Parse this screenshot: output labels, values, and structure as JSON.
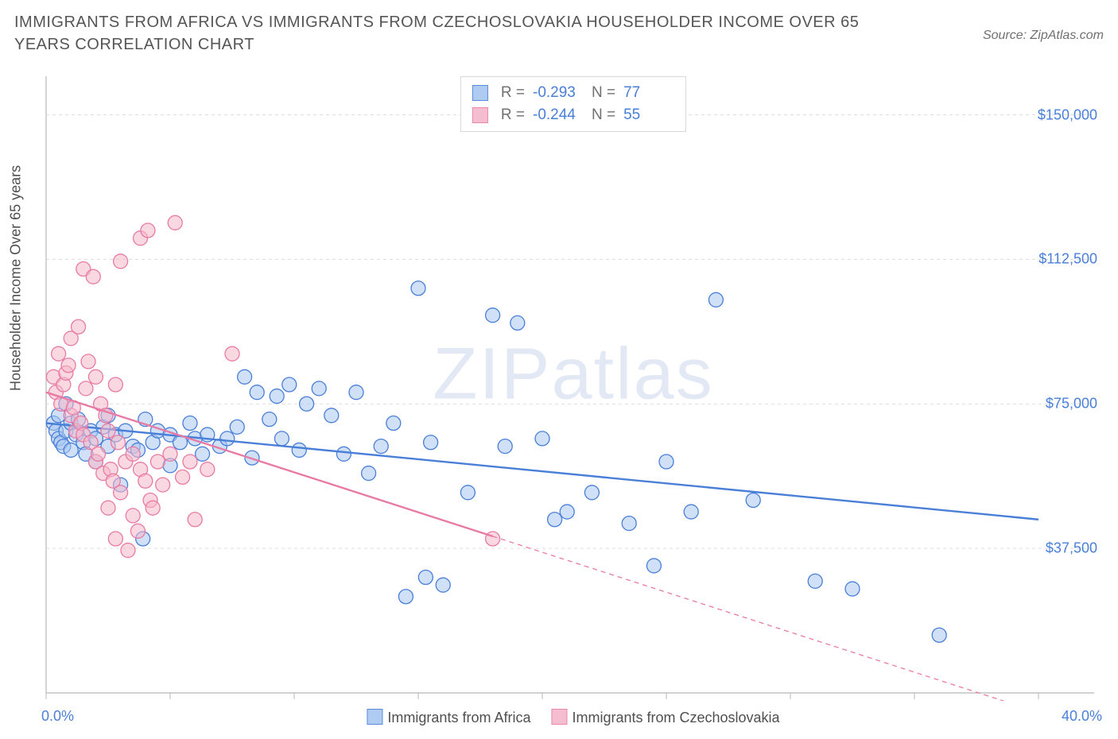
{
  "title": "IMMIGRANTS FROM AFRICA VS IMMIGRANTS FROM CZECHOSLOVAKIA HOUSEHOLDER INCOME OVER 65 YEARS CORRELATION CHART",
  "source": "Source: ZipAtlas.com",
  "watermark": "ZIPatlas",
  "chart": {
    "type": "scatter",
    "background_color": "#ffffff",
    "grid_color": "#dcdcdc",
    "axis_color": "#b8b8b8",
    "y_axis_label": "Householder Income Over 65 years",
    "x_range": [
      0,
      40
    ],
    "y_range": [
      0,
      160000
    ],
    "x_ticks": [
      0,
      5,
      10,
      15,
      20,
      25,
      30,
      35,
      40
    ],
    "x_tick_labels": {
      "0": "0.0%",
      "40": "40.0%"
    },
    "y_gridlines": [
      37500,
      75000,
      112500,
      150000
    ],
    "y_tick_labels": {
      "37500": "$37,500",
      "75000": "$75,000",
      "112500": "$112,500",
      "150000": "$150,000"
    },
    "label_fontsize": 18,
    "tick_color": "#4a7fd8",
    "marker_radius": 9,
    "marker_stroke_width": 1.3,
    "trend_line_width": 2.4,
    "series": [
      {
        "name": "Immigrants from Africa",
        "fill": "#a8c6f0",
        "stroke": "#4a7fd8",
        "fill_opacity": 0.55,
        "r_value": "-0.293",
        "n_value": "77",
        "trend": {
          "x1": 0,
          "y1": 70000,
          "x2": 40,
          "y2": 45000,
          "solid_until_x": 40
        },
        "points": [
          [
            0.3,
            70000
          ],
          [
            0.4,
            68000
          ],
          [
            0.5,
            66000
          ],
          [
            0.5,
            72000
          ],
          [
            0.6,
            65000
          ],
          [
            0.7,
            64000
          ],
          [
            0.8,
            68000
          ],
          [
            0.8,
            75000
          ],
          [
            1.0,
            63000
          ],
          [
            1.0,
            70000
          ],
          [
            1.2,
            67000
          ],
          [
            1.3,
            71000
          ],
          [
            1.5,
            65000
          ],
          [
            1.6,
            62000
          ],
          [
            1.8,
            68000
          ],
          [
            2.0,
            66000
          ],
          [
            2.0,
            60000
          ],
          [
            2.3,
            69000
          ],
          [
            2.5,
            64000
          ],
          [
            2.5,
            72000
          ],
          [
            2.8,
            67000
          ],
          [
            3.0,
            54000
          ],
          [
            3.2,
            68000
          ],
          [
            3.5,
            64000
          ],
          [
            3.7,
            63000
          ],
          [
            3.9,
            40000
          ],
          [
            4.0,
            71000
          ],
          [
            4.3,
            65000
          ],
          [
            4.5,
            68000
          ],
          [
            5.0,
            67000
          ],
          [
            5.0,
            59000
          ],
          [
            5.4,
            65000
          ],
          [
            5.8,
            70000
          ],
          [
            6.0,
            66000
          ],
          [
            6.3,
            62000
          ],
          [
            6.5,
            67000
          ],
          [
            7.0,
            64000
          ],
          [
            7.3,
            66000
          ],
          [
            7.7,
            69000
          ],
          [
            8.0,
            82000
          ],
          [
            8.3,
            61000
          ],
          [
            8.5,
            78000
          ],
          [
            9.0,
            71000
          ],
          [
            9.3,
            77000
          ],
          [
            9.5,
            66000
          ],
          [
            9.8,
            80000
          ],
          [
            10.2,
            63000
          ],
          [
            10.5,
            75000
          ],
          [
            11.0,
            79000
          ],
          [
            11.5,
            72000
          ],
          [
            12.0,
            62000
          ],
          [
            12.5,
            78000
          ],
          [
            13.0,
            57000
          ],
          [
            13.5,
            64000
          ],
          [
            14.0,
            70000
          ],
          [
            14.5,
            25000
          ],
          [
            15.0,
            105000
          ],
          [
            15.3,
            30000
          ],
          [
            15.5,
            65000
          ],
          [
            16.0,
            28000
          ],
          [
            17.0,
            52000
          ],
          [
            18.0,
            98000
          ],
          [
            18.5,
            64000
          ],
          [
            19.0,
            96000
          ],
          [
            20.0,
            66000
          ],
          [
            20.5,
            45000
          ],
          [
            21.0,
            47000
          ],
          [
            22.0,
            52000
          ],
          [
            23.5,
            44000
          ],
          [
            24.5,
            33000
          ],
          [
            25.0,
            60000
          ],
          [
            26.0,
            47000
          ],
          [
            27.0,
            102000
          ],
          [
            28.5,
            50000
          ],
          [
            31.0,
            29000
          ],
          [
            32.5,
            27000
          ],
          [
            36.0,
            15000
          ]
        ]
      },
      {
        "name": "Immigrants from Czechoslovakia",
        "fill": "#f5b8cb",
        "stroke": "#e87ba3",
        "fill_opacity": 0.55,
        "r_value": "-0.244",
        "n_value": "55",
        "trend": {
          "x1": 0,
          "y1": 78000,
          "x2": 40,
          "y2": -5000,
          "solid_until_x": 18
        },
        "points": [
          [
            0.3,
            82000
          ],
          [
            0.4,
            78000
          ],
          [
            0.5,
            88000
          ],
          [
            0.6,
            75000
          ],
          [
            0.7,
            80000
          ],
          [
            0.8,
            83000
          ],
          [
            0.9,
            85000
          ],
          [
            1.0,
            72000
          ],
          [
            1.0,
            92000
          ],
          [
            1.1,
            74000
          ],
          [
            1.2,
            68000
          ],
          [
            1.3,
            95000
          ],
          [
            1.4,
            70000
          ],
          [
            1.5,
            67000
          ],
          [
            1.5,
            110000
          ],
          [
            1.6,
            79000
          ],
          [
            1.7,
            86000
          ],
          [
            1.8,
            65000
          ],
          [
            1.9,
            108000
          ],
          [
            2.0,
            82000
          ],
          [
            2.0,
            60000
          ],
          [
            2.1,
            62000
          ],
          [
            2.2,
            75000
          ],
          [
            2.3,
            57000
          ],
          [
            2.4,
            72000
          ],
          [
            2.5,
            48000
          ],
          [
            2.5,
            68000
          ],
          [
            2.6,
            58000
          ],
          [
            2.7,
            55000
          ],
          [
            2.8,
            80000
          ],
          [
            2.8,
            40000
          ],
          [
            2.9,
            65000
          ],
          [
            3.0,
            52000
          ],
          [
            3.0,
            112000
          ],
          [
            3.2,
            60000
          ],
          [
            3.3,
            37000
          ],
          [
            3.5,
            62000
          ],
          [
            3.5,
            46000
          ],
          [
            3.7,
            42000
          ],
          [
            3.8,
            118000
          ],
          [
            3.8,
            58000
          ],
          [
            4.0,
            55000
          ],
          [
            4.1,
            120000
          ],
          [
            4.2,
            50000
          ],
          [
            4.3,
            48000
          ],
          [
            4.5,
            60000
          ],
          [
            4.7,
            54000
          ],
          [
            5.0,
            62000
          ],
          [
            5.2,
            122000
          ],
          [
            5.5,
            56000
          ],
          [
            5.8,
            60000
          ],
          [
            6.0,
            45000
          ],
          [
            6.5,
            58000
          ],
          [
            7.5,
            88000
          ],
          [
            18.0,
            40000
          ]
        ]
      }
    ],
    "bottom_legend": [
      "Immigrants from Africa",
      "Immigrants from Czechoslovakia"
    ],
    "top_legend_labels": {
      "r": "R =",
      "n": "N ="
    }
  }
}
